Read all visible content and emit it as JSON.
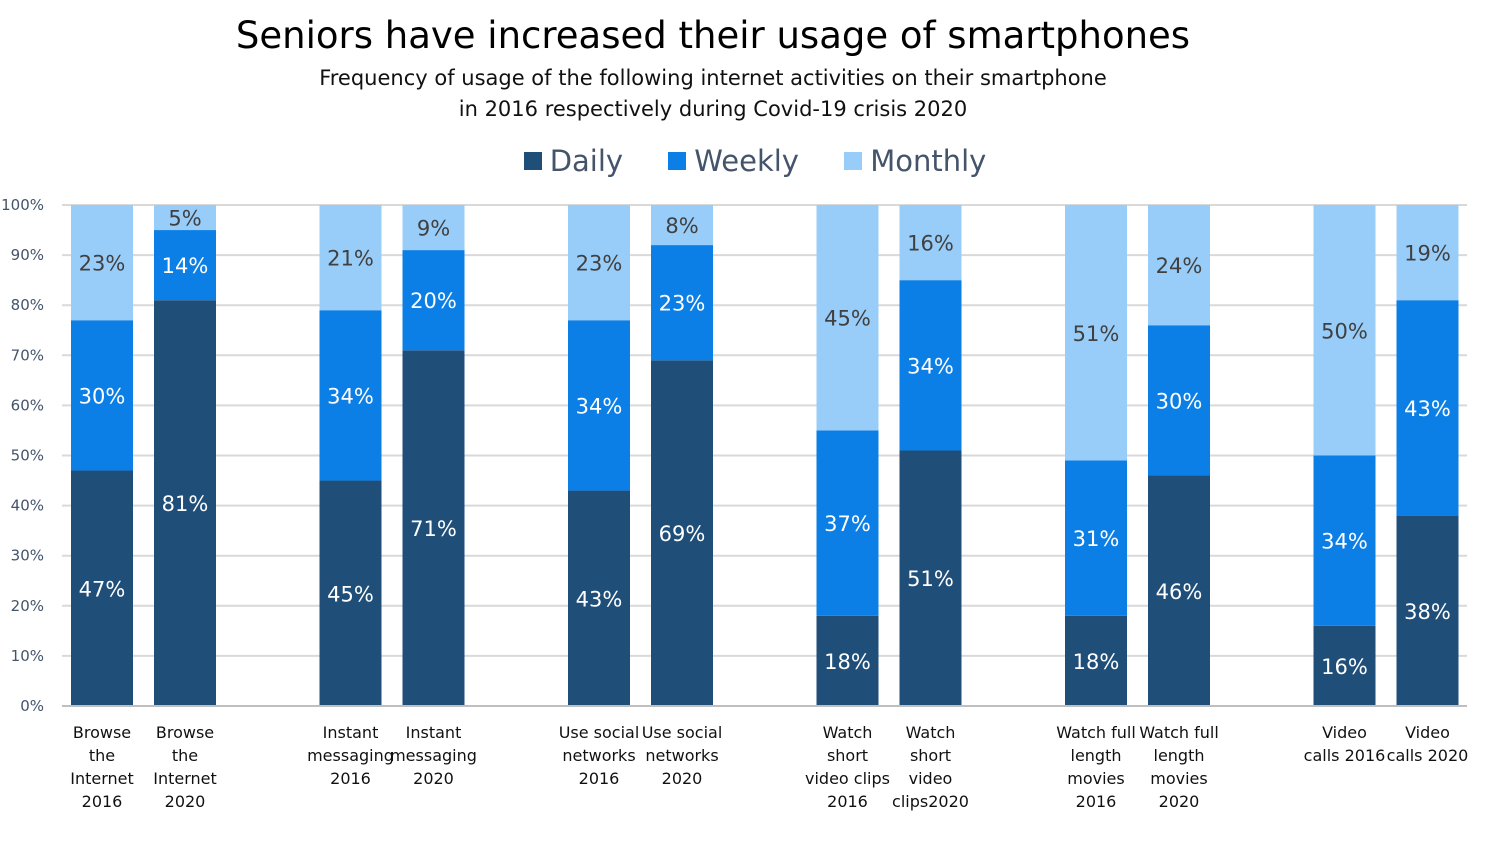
{
  "chart_data": {
    "type": "bar",
    "stacked": true,
    "title": "Seniors have increased their usage of smartphones",
    "subtitle": [
      "Frequency of usage of the following internet activities on their smartphone",
      "in 2016 respectively during Covid-19 crisis 2020"
    ],
    "categories": [
      [
        "Browse",
        "the",
        "Internet",
        "2016"
      ],
      [
        "Browse",
        "the",
        "Internet",
        "2020"
      ],
      [
        "Instant",
        "messaging",
        "2016"
      ],
      [
        "Instant",
        "messaging",
        "2020"
      ],
      [
        "Use social",
        "networks",
        "2016"
      ],
      [
        "Use social",
        "networks",
        "2020"
      ],
      [
        "Watch",
        "short",
        "video clips",
        "2016"
      ],
      [
        "Watch",
        "short",
        "video",
        "clips2020"
      ],
      [
        "Watch full",
        "length",
        "movies",
        "2016"
      ],
      [
        "Watch full",
        "length",
        "movies",
        "2020"
      ],
      [
        "Video",
        "calls 2016"
      ],
      [
        "Video",
        "calls 2020"
      ]
    ],
    "series": [
      {
        "name": "Daily",
        "color": "#1f4e79",
        "values": [
          47,
          81,
          45,
          71,
          43,
          69,
          18,
          51,
          18,
          46,
          16,
          38
        ]
      },
      {
        "name": "Weekly",
        "color": "#0b7fe6",
        "values": [
          30,
          14,
          34,
          20,
          34,
          23,
          37,
          34,
          31,
          30,
          34,
          43
        ]
      },
      {
        "name": "Monthly",
        "color": "#99cdf9",
        "values": [
          23,
          5,
          21,
          9,
          23,
          8,
          45,
          16,
          51,
          24,
          50,
          19
        ]
      }
    ],
    "value_suffix": "%",
    "ylim": [
      0,
      100
    ],
    "yticks": [
      "0%",
      "10%",
      "20%",
      "30%",
      "40%",
      "50%",
      "60%",
      "70%",
      "80%",
      "90%",
      "100%"
    ],
    "grid": true,
    "legend": "top"
  }
}
